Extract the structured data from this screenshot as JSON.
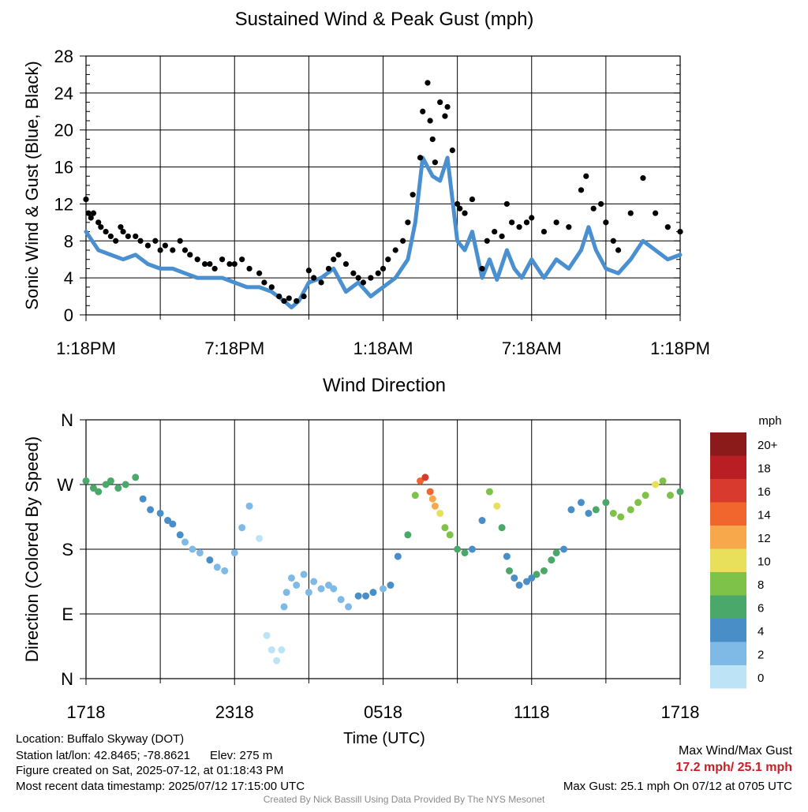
{
  "colors": {
    "sustained": "#4a90d0",
    "gust": "#000000",
    "max_text": "#c81e24",
    "footer_credit": "#8a8a8a"
  },
  "chart_data": [
    {
      "type": "line",
      "title": "Sustained Wind & Peak Gust (mph)",
      "xlabel": "",
      "ylabel": "Sonic Wind & Gust (Blue, Black)",
      "xlim": [
        0,
        24
      ],
      "ylim": [
        0,
        28
      ],
      "x_unit": "hours since 1:18PM",
      "x_tick_positions": [
        0,
        6,
        12,
        18,
        24
      ],
      "x_tick_labels": [
        "1:18PM",
        "7:18PM",
        "1:18AM",
        "7:18AM",
        "1:18PM"
      ],
      "y_ticks": [
        0,
        4,
        8,
        12,
        16,
        20,
        24,
        28
      ],
      "grid": true,
      "series": [
        {
          "legend_note": "Blue",
          "style": "line",
          "color": "#4a90d0",
          "x": [
            0,
            0.5,
            1,
            1.5,
            2,
            2.5,
            3,
            3.5,
            4,
            4.5,
            5,
            5.5,
            6,
            6.5,
            7,
            7.5,
            8,
            8.3,
            8.6,
            9,
            9.5,
            10,
            10.5,
            11,
            11.5,
            12,
            12.5,
            13,
            13.3,
            13.6,
            14,
            14.3,
            14.6,
            15,
            15.3,
            15.6,
            16,
            16.3,
            16.6,
            17,
            17.3,
            17.6,
            18,
            18.5,
            19,
            19.5,
            20,
            20.3,
            20.6,
            21,
            21.5,
            22,
            22.5,
            23,
            23.5,
            24
          ],
          "y": [
            9,
            7,
            6.5,
            6,
            6.5,
            5.5,
            5,
            5,
            4.5,
            4,
            4,
            4,
            3.5,
            3,
            3,
            2.5,
            1.5,
            0.8,
            1.5,
            3.5,
            4,
            5,
            2.5,
            3.5,
            2,
            3,
            4,
            6,
            10,
            17,
            15,
            14.5,
            17,
            8,
            7,
            9,
            4,
            6,
            3.8,
            7,
            5,
            4,
            6,
            4,
            6,
            5,
            7,
            9.5,
            7,
            5,
            4.5,
            6,
            8,
            7,
            6,
            6.5
          ]
        },
        {
          "legend_note": "Black",
          "style": "dots",
          "color": "#000000",
          "x": [
            0,
            0.1,
            0.2,
            0.3,
            0.5,
            0.6,
            0.8,
            1,
            1.2,
            1.4,
            1.5,
            1.7,
            2,
            2.2,
            2.5,
            2.8,
            3,
            3.2,
            3.5,
            3.8,
            4,
            4.2,
            4.5,
            4.8,
            5,
            5.2,
            5.5,
            5.8,
            6,
            6.3,
            6.6,
            7,
            7.2,
            7.5,
            7.8,
            8,
            8.2,
            8.5,
            8.8,
            9,
            9.2,
            9.5,
            9.8,
            10,
            10.2,
            10.5,
            10.8,
            11,
            11.2,
            11.5,
            11.8,
            12,
            12.2,
            12.5,
            12.8,
            13,
            13.2,
            13.5,
            13.6,
            13.8,
            13.9,
            14,
            14.1,
            14.3,
            14.5,
            14.6,
            14.8,
            15,
            15.1,
            15.3,
            15.6,
            16,
            16.2,
            16.5,
            16.8,
            17,
            17.2,
            17.5,
            17.8,
            18,
            18.5,
            19,
            19.5,
            20,
            20.2,
            20.5,
            20.8,
            21,
            21.3,
            21.5,
            22,
            22.5,
            23,
            23.5,
            24
          ],
          "y": [
            12.5,
            11,
            10.5,
            11,
            10,
            9.5,
            9,
            8.5,
            8,
            9.5,
            9,
            8.5,
            8.5,
            8,
            7.5,
            8,
            7,
            7.5,
            7,
            8,
            7,
            6.5,
            6,
            5.5,
            5.5,
            5,
            6,
            5.5,
            5.5,
            6,
            5,
            4.5,
            3.5,
            3,
            2,
            1.5,
            1.8,
            1.5,
            2,
            4.8,
            4,
            3.5,
            5,
            6,
            6.5,
            5.5,
            4.5,
            4,
            3.5,
            4,
            4.5,
            5,
            6,
            7,
            8,
            10,
            13,
            17,
            22,
            25.1,
            21,
            19,
            16.5,
            23,
            21.5,
            22.5,
            17.8,
            12,
            11.5,
            11,
            12.5,
            5,
            8,
            9,
            8.5,
            12,
            10,
            9.5,
            10,
            10.5,
            9,
            10,
            9.5,
            13.5,
            15,
            11.5,
            12,
            10,
            8,
            7,
            11,
            14.8,
            11,
            9.5,
            9
          ]
        }
      ]
    },
    {
      "type": "scatter",
      "title": "Wind Direction",
      "xlabel": "Time (UTC)",
      "ylabel": "Direction (Colored By Speed)",
      "xlim": [
        0,
        24
      ],
      "ylim": [
        0,
        360
      ],
      "x_unit": "hours since 1718 UTC",
      "x_tick_positions": [
        0,
        6,
        12,
        18,
        24
      ],
      "x_tick_labels": [
        "1718",
        "2318",
        "0518",
        "1118",
        "1718"
      ],
      "y_tick_values": [
        0,
        90,
        180,
        270,
        360
      ],
      "y_tick_labels": [
        "N",
        "E",
        "S",
        "W",
        "N"
      ],
      "grid": true,
      "points": {
        "x": [
          0,
          0.3,
          0.5,
          0.8,
          1,
          1.3,
          1.6,
          2,
          2.3,
          2.6,
          3,
          3.3,
          3.5,
          3.8,
          4,
          4.3,
          4.6,
          5,
          5.3,
          5.6,
          6,
          6.3,
          6.6,
          7,
          7.3,
          7.5,
          7.7,
          7.9,
          8,
          8.1,
          8.3,
          8.5,
          8.8,
          9,
          9.2,
          9.5,
          9.8,
          10,
          10.3,
          10.6,
          11,
          11.3,
          11.6,
          12,
          12.3,
          12.6,
          13,
          13.3,
          13.5,
          13.7,
          13.9,
          14,
          14.1,
          14.3,
          14.5,
          14.7,
          15,
          15.3,
          15.6,
          16,
          16.3,
          16.6,
          16.8,
          17,
          17.1,
          17.3,
          17.5,
          17.8,
          18,
          18.2,
          18.5,
          18.8,
          19,
          19.3,
          19.6,
          20,
          20.3,
          20.6,
          21,
          21.3,
          21.6,
          22,
          22.3,
          22.6,
          23,
          23.3,
          23.6,
          24
        ],
        "y": [
          275,
          265,
          260,
          270,
          275,
          265,
          270,
          280,
          250,
          235,
          230,
          220,
          215,
          200,
          190,
          180,
          175,
          165,
          155,
          150,
          175,
          210,
          240,
          195,
          60,
          40,
          25,
          40,
          100,
          120,
          140,
          130,
          145,
          120,
          135,
          125,
          130,
          125,
          110,
          100,
          115,
          115,
          120,
          125,
          130,
          170,
          200,
          255,
          275,
          280,
          260,
          250,
          240,
          230,
          210,
          200,
          180,
          175,
          180,
          220,
          260,
          240,
          210,
          170,
          150,
          140,
          130,
          135,
          140,
          145,
          150,
          165,
          175,
          180,
          235,
          245,
          230,
          235,
          245,
          230,
          225,
          235,
          245,
          255,
          270,
          275,
          255,
          260
        ],
        "speed": [
          7,
          7,
          7,
          7,
          7,
          7,
          7,
          6,
          5,
          5,
          4,
          4,
          4,
          4,
          3,
          3,
          3,
          4,
          3,
          3,
          3,
          2,
          2,
          1,
          1,
          1,
          1,
          1,
          2,
          2,
          3,
          3,
          3,
          3,
          2,
          2,
          2,
          3,
          3,
          3,
          4,
          4,
          4,
          3,
          4,
          4,
          6,
          8,
          14,
          17,
          15,
          13,
          12,
          11,
          9,
          8,
          7,
          6,
          5,
          4,
          9,
          10,
          6,
          5,
          6,
          5,
          5,
          4,
          4,
          6,
          7,
          7,
          6,
          5,
          4,
          4,
          5,
          6,
          7,
          8,
          8,
          8,
          9,
          9,
          10,
          9,
          8,
          7
        ]
      },
      "colorbar": {
        "unit_label": "mph",
        "labels": [
          "20+",
          "18",
          "16",
          "14",
          "12",
          "10",
          "8",
          "6",
          "4",
          "2",
          "0"
        ],
        "colors": [
          "#8b1a1a",
          "#b81e24",
          "#d93a2e",
          "#f0662c",
          "#f6a84a",
          "#e8df5a",
          "#7fc24a",
          "#4aa96a",
          "#4a8ec8",
          "#7fbae6",
          "#bde3f6"
        ]
      }
    }
  ],
  "footer": {
    "location": "Location: Buffalo Skyway (DOT)",
    "station": "Station lat/lon: 42.8465; -78.8621      Elev: 275 m",
    "created": "Figure created on Sat, 2025-07-12, at 01:18:43 PM",
    "recent": "Most recent data timestamp: 2025/07/12 17:15:00 UTC",
    "max_label": "Max Wind/Max Gust",
    "max_values": "17.2 mph/ 25.1 mph",
    "max_gust_note": "Max Gust: 25.1 mph On 07/12 at 0705 UTC",
    "credit": "Created By Nick Bassill Using Data Provided By The NYS Mesonet"
  }
}
